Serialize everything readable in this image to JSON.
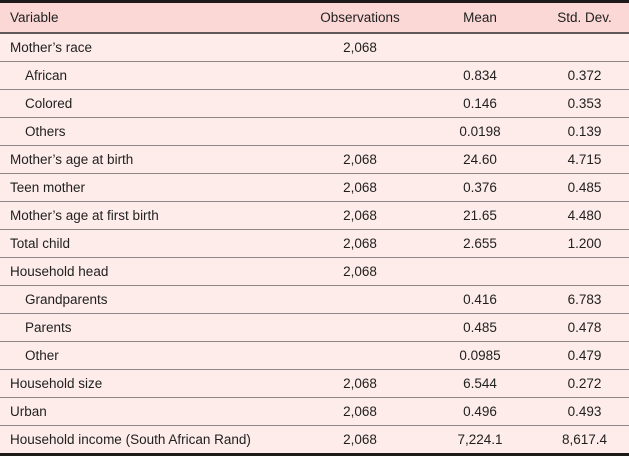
{
  "colors": {
    "page_bg": "#fdece9",
    "header_bg": "#fbd8d5",
    "row_bg": "#fdece9",
    "row_divider": "#8d8787",
    "header_rule": "#5f5858",
    "outer_border": "#1c1b1a",
    "text": "#1f1f1f"
  },
  "table": {
    "columns": [
      {
        "label": "Variable"
      },
      {
        "label": "Observations"
      },
      {
        "label": "Mean"
      },
      {
        "label": "Std. Dev."
      }
    ],
    "rows": [
      {
        "variable": "Mother’s race",
        "observations": "2,068",
        "mean": "",
        "std_dev": "",
        "indent": false
      },
      {
        "variable": "African",
        "observations": "",
        "mean": "0.834",
        "std_dev": "0.372",
        "indent": true
      },
      {
        "variable": "Colored",
        "observations": "",
        "mean": "0.146",
        "std_dev": "0.353",
        "indent": true
      },
      {
        "variable": "Others",
        "observations": "",
        "mean": "0.0198",
        "std_dev": "0.139",
        "indent": true
      },
      {
        "variable": "Mother’s age at birth",
        "observations": "2,068",
        "mean": "24.60",
        "std_dev": "4.715",
        "indent": false
      },
      {
        "variable": "Teen mother",
        "observations": "2,068",
        "mean": "0.376",
        "std_dev": "0.485",
        "indent": false
      },
      {
        "variable": "Mother’s age at first birth",
        "observations": "2,068",
        "mean": "21.65",
        "std_dev": "4.480",
        "indent": false
      },
      {
        "variable": "Total child",
        "observations": "2,068",
        "mean": "2.655",
        "std_dev": "1.200",
        "indent": false
      },
      {
        "variable": "Household head",
        "observations": "2,068",
        "mean": "",
        "std_dev": "",
        "indent": false
      },
      {
        "variable": "Grandparents",
        "observations": "",
        "mean": "0.416",
        "std_dev": "6.783",
        "indent": true
      },
      {
        "variable": "Parents",
        "observations": "",
        "mean": "0.485",
        "std_dev": "0.478",
        "indent": true
      },
      {
        "variable": "Other",
        "observations": "",
        "mean": "0.0985",
        "std_dev": "0.479",
        "indent": true
      },
      {
        "variable": "Household size",
        "observations": "2,068",
        "mean": "6.544",
        "std_dev": "0.272",
        "indent": false
      },
      {
        "variable": "Urban",
        "observations": "2,068",
        "mean": "0.496",
        "std_dev": "0.493",
        "indent": false
      },
      {
        "variable": "Household income (South African Rand)",
        "observations": "2,068",
        "mean": "7,224.1",
        "std_dev": "8,617.4",
        "indent": false
      }
    ]
  },
  "chart_data": {
    "type": "table",
    "columns": [
      "Variable",
      "Observations",
      "Mean",
      "Std. Dev."
    ],
    "rows": [
      [
        "Mother’s race",
        "2,068",
        "",
        ""
      ],
      [
        "African",
        "",
        "0.834",
        "0.372"
      ],
      [
        "Colored",
        "",
        "0.146",
        "0.353"
      ],
      [
        "Others",
        "",
        "0.0198",
        "0.139"
      ],
      [
        "Mother’s age at birth",
        "2,068",
        "24.60",
        "4.715"
      ],
      [
        "Teen mother",
        "2,068",
        "0.376",
        "0.485"
      ],
      [
        "Mother’s age at first birth",
        "2,068",
        "21.65",
        "4.480"
      ],
      [
        "Total child",
        "2,068",
        "2.655",
        "1.200"
      ],
      [
        "Household head",
        "2,068",
        "",
        ""
      ],
      [
        "Grandparents",
        "",
        "0.416",
        "6.783"
      ],
      [
        "Parents",
        "",
        "0.485",
        "0.478"
      ],
      [
        "Other",
        "",
        "0.0985",
        "0.479"
      ],
      [
        "Household size",
        "2,068",
        "6.544",
        "0.272"
      ],
      [
        "Urban",
        "2,068",
        "0.496",
        "0.493"
      ],
      [
        "Household income (South African Rand)",
        "2,068",
        "7,224.1",
        "8,617.4"
      ]
    ]
  }
}
